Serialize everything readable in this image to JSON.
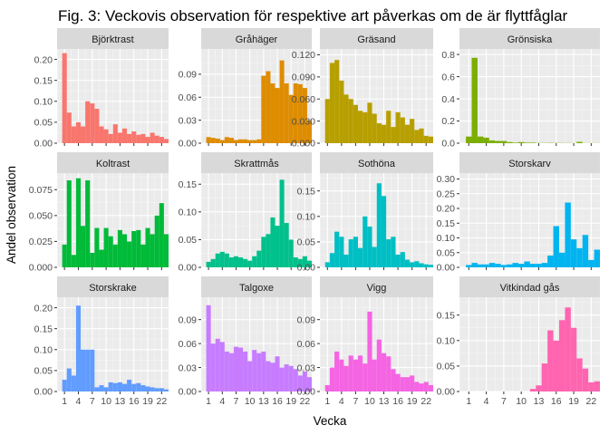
{
  "chart_data": {
    "type": "bar",
    "title": "Fig. 3: Veckovis observation för respektive art påverkas om de är flyttfåglar",
    "xlabel": "Vecka",
    "ylabel": "Andel observation",
    "x": [
      1,
      2,
      3,
      4,
      5,
      6,
      7,
      8,
      9,
      10,
      11,
      12,
      13,
      14,
      15,
      16,
      17,
      18,
      19,
      20,
      21,
      22,
      23
    ],
    "x_ticks": [
      1,
      4,
      7,
      10,
      13,
      16,
      19,
      22
    ],
    "x_tick_labels": [
      "1",
      "4",
      "7",
      "10",
      "13",
      "16",
      "19",
      "22"
    ],
    "xlim": [
      -0.6,
      23.5
    ],
    "facet_layout": {
      "rows": 3,
      "cols": 4,
      "scales": "free_y"
    },
    "grid": true,
    "panels": [
      {
        "name": "Björktrast",
        "color": "#F8766D",
        "ylim": [
          0,
          0.225
        ],
        "y_ticks": [
          0,
          0.05,
          0.1,
          0.15,
          0.2
        ],
        "y_tick_labels": [
          "0.00",
          "0.05",
          "0.10",
          "0.15",
          "0.20"
        ],
        "values": [
          0.215,
          0.073,
          0.04,
          0.05,
          0.04,
          0.1,
          0.095,
          0.082,
          0.04,
          0.033,
          0.022,
          0.045,
          0.025,
          0.035,
          0.022,
          0.028,
          0.02,
          0.022,
          0.015,
          0.025,
          0.018,
          0.015,
          0.01
        ]
      },
      {
        "name": "Gråhäger",
        "color": "#DE8C00",
        "ylim": [
          0,
          0.123
        ],
        "y_ticks": [
          0,
          0.03,
          0.06,
          0.09
        ],
        "y_tick_labels": [
          "0.00",
          "0.03",
          "0.06",
          "0.09"
        ],
        "values": [
          0.008,
          0.007,
          0.006,
          0.004,
          0.008,
          0.007,
          0.004,
          0.005,
          0.005,
          0.004,
          0.004,
          0.005,
          0.088,
          0.094,
          0.078,
          0.072,
          0.108,
          0.078,
          0.063,
          0.078,
          0.077,
          0.072,
          0.03
        ]
      },
      {
        "name": "Gräsand",
        "color": "#B79F00",
        "ylim": [
          0,
          0.128
        ],
        "y_ticks": [
          0,
          0.03,
          0.06,
          0.09,
          0.12
        ],
        "y_tick_labels": [
          "0.000",
          "0.030",
          "0.060",
          "0.090",
          "0.120"
        ],
        "values": [
          0.06,
          0.109,
          0.113,
          0.085,
          0.066,
          0.06,
          0.052,
          0.044,
          0.042,
          0.055,
          0.04,
          0.027,
          0.025,
          0.044,
          0.022,
          0.042,
          0.035,
          0.025,
          0.033,
          0.018,
          0.02,
          0.01,
          0.009
        ]
      },
      {
        "name": "Grönsiska",
        "color": "#7CAE00",
        "ylim": [
          0,
          0.85
        ],
        "y_ticks": [
          0,
          0.2,
          0.4,
          0.6,
          0.8
        ],
        "y_tick_labels": [
          "0.0",
          "0.2",
          "0.4",
          "0.6",
          "0.8"
        ],
        "values": [
          0.06,
          0.77,
          0.06,
          0.05,
          0.025,
          0.02,
          0.02,
          0.01,
          0.005,
          0.01,
          0.005,
          0.005,
          0.002,
          0.002,
          0.003,
          0.002,
          0.002,
          0.002,
          0.001,
          0.012,
          0.001,
          0.001,
          0.001
        ]
      },
      {
        "name": "Koltrast",
        "color": "#00BA38",
        "ylim": [
          0,
          0.091
        ],
        "y_ticks": [
          0,
          0.025,
          0.05,
          0.075
        ],
        "y_tick_labels": [
          "0.000",
          "0.025",
          "0.050",
          "0.075"
        ],
        "values": [
          0.022,
          0.084,
          0.012,
          0.086,
          0.04,
          0.084,
          0.014,
          0.038,
          0.017,
          0.038,
          0.03,
          0.022,
          0.036,
          0.032,
          0.025,
          0.035,
          0.036,
          0.022,
          0.038,
          0.032,
          0.05,
          0.062,
          0.032
        ]
      },
      {
        "name": "Skrattmås",
        "color": "#00C08B",
        "ylim": [
          0,
          0.17
        ],
        "y_ticks": [
          0,
          0.05,
          0.1,
          0.15
        ],
        "y_tick_labels": [
          "0.00",
          "0.05",
          "0.10",
          "0.15"
        ],
        "values": [
          0.01,
          0.015,
          0.025,
          0.028,
          0.025,
          0.018,
          0.02,
          0.018,
          0.015,
          0.012,
          0.02,
          0.03,
          0.055,
          0.06,
          0.09,
          0.075,
          0.158,
          0.08,
          0.05,
          0.018,
          0.015,
          0.02,
          0.012
        ]
      },
      {
        "name": "Sothöna",
        "color": "#00BFC4",
        "ylim": [
          0,
          0.185
        ],
        "y_ticks": [
          0,
          0.05,
          0.1,
          0.15
        ],
        "y_tick_labels": [
          "0.00",
          "0.05",
          "0.10",
          "0.15"
        ],
        "values": [
          0.01,
          0.028,
          0.07,
          0.06,
          0.025,
          0.055,
          0.06,
          0.038,
          0.1,
          0.08,
          0.04,
          0.165,
          0.14,
          0.055,
          0.06,
          0.025,
          0.03,
          0.015,
          0.01,
          0.012,
          0.008,
          0.006,
          0.005
        ]
      },
      {
        "name": "Storskarv",
        "color": "#00B4F0",
        "ylim": [
          0,
          0.32
        ],
        "y_ticks": [
          0,
          0.05,
          0.1,
          0.15,
          0.2,
          0.25,
          0.3
        ],
        "y_tick_labels": [
          "0.00",
          "0.05",
          "0.10",
          "0.15",
          "0.20",
          "0.25",
          "0.30"
        ],
        "values": [
          0.008,
          0.015,
          0.01,
          0.01,
          0.015,
          0.012,
          0.008,
          0.01,
          0.015,
          0.012,
          0.02,
          0.012,
          0.012,
          0.015,
          0.04,
          0.14,
          0.05,
          0.22,
          0.095,
          0.065,
          0.11,
          0.025,
          0.06
        ]
      },
      {
        "name": "Storskrake",
        "color": "#619CFF",
        "ylim": [
          0,
          0.225
        ],
        "y_ticks": [
          0,
          0.05,
          0.1,
          0.15,
          0.2
        ],
        "y_tick_labels": [
          "0.00",
          "0.05",
          "0.10",
          "0.15",
          "0.20"
        ],
        "values": [
          0.028,
          0.055,
          0.038,
          0.205,
          0.1,
          0.1,
          0.1,
          0.01,
          0.015,
          0.01,
          0.022,
          0.02,
          0.022,
          0.018,
          0.028,
          0.018,
          0.02,
          0.015,
          0.012,
          0.01,
          0.008,
          0.008,
          0.005
        ]
      },
      {
        "name": "Talgoxe",
        "color": "#C77CFF",
        "ylim": [
          0,
          0.118
        ],
        "y_ticks": [
          0,
          0.03,
          0.06,
          0.09
        ],
        "y_tick_labels": [
          "0.00",
          "0.03",
          "0.06",
          "0.09"
        ],
        "values": [
          0.108,
          0.06,
          0.066,
          0.062,
          0.05,
          0.048,
          0.056,
          0.055,
          0.05,
          0.038,
          0.052,
          0.048,
          0.05,
          0.038,
          0.036,
          0.044,
          0.03,
          0.034,
          0.032,
          0.028,
          0.02,
          0.025,
          0.018
        ]
      },
      {
        "name": "Vigg",
        "color": "#F564E3",
        "ylim": [
          0,
          0.118
        ],
        "y_ticks": [
          0,
          0.03,
          0.06,
          0.09
        ],
        "y_tick_labels": [
          "0.00",
          "0.03",
          "0.06",
          "0.09"
        ],
        "values": [
          0.008,
          0.03,
          0.05,
          0.04,
          0.032,
          0.045,
          0.04,
          0.045,
          0.035,
          0.1,
          0.04,
          0.065,
          0.048,
          0.044,
          0.028,
          0.022,
          0.018,
          0.018,
          0.02,
          0.012,
          0.01,
          0.012,
          0.008
        ]
      },
      {
        "name": "Vitkindad gås",
        "color": "#FF64B0",
        "ylim": [
          0,
          0.185
        ],
        "y_ticks": [
          0,
          0.05,
          0.1,
          0.15
        ],
        "y_tick_labels": [
          "0.00",
          "0.05",
          "0.10",
          "0.15"
        ],
        "values": [
          0,
          0,
          0,
          0,
          0,
          0,
          0,
          0,
          0,
          0,
          0,
          0.005,
          0.012,
          0.055,
          0.12,
          0.1,
          0.14,
          0.165,
          0.125,
          0.065,
          0.045,
          0.018,
          0.02
        ]
      }
    ]
  }
}
